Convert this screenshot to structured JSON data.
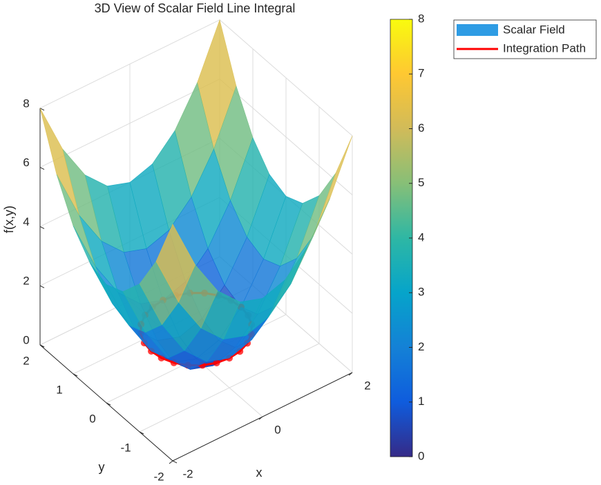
{
  "chart_data": {
    "type": "surface3d",
    "title": "3D View of Scalar Field Line Integral",
    "xlabel": "x",
    "ylabel": "y",
    "zlabel": "f(x,y)",
    "x": [
      -2,
      -1.5,
      -1,
      -0.5,
      0,
      0.5,
      1,
      1.5,
      2
    ],
    "y": [
      -2,
      -1.5,
      -1,
      -0.5,
      0,
      0.5,
      1,
      1.5,
      2
    ],
    "z": [
      [
        8,
        6.25,
        5,
        4.25,
        4,
        4.25,
        5,
        6.25,
        8
      ],
      [
        6.25,
        4.5,
        3.25,
        2.5,
        2.25,
        2.5,
        3.25,
        4.5,
        6.25
      ],
      [
        5,
        3.25,
        2,
        1.25,
        1,
        1.25,
        2,
        3.25,
        5
      ],
      [
        4.25,
        2.5,
        1.25,
        0.5,
        0.25,
        0.5,
        1.25,
        2.5,
        4.25
      ],
      [
        4,
        2.25,
        1,
        0.25,
        0,
        0.25,
        1,
        2.25,
        4
      ],
      [
        4.25,
        2.5,
        1.25,
        0.5,
        0.25,
        0.5,
        1.25,
        2.5,
        4.25
      ],
      [
        5,
        3.25,
        2,
        1.25,
        1,
        1.25,
        2,
        3.25,
        5
      ],
      [
        6.25,
        4.5,
        3.25,
        2.5,
        2.25,
        2.5,
        3.25,
        4.5,
        6.25
      ],
      [
        8,
        6.25,
        5,
        4.25,
        4,
        4.25,
        5,
        6.25,
        8
      ]
    ],
    "surface_name": "Scalar Field",
    "surface_legend_color": "#2e9ce4",
    "colormap": "parula",
    "path": {
      "name": "Integration Path",
      "color": "#ff0000",
      "x": [
        1,
        0.966,
        0.866,
        0.707,
        0.5,
        0.259,
        0,
        -0.259,
        -0.5,
        -0.707,
        -0.866,
        -0.966,
        -1,
        -0.966,
        -0.866,
        -0.707,
        -0.5,
        -0.259,
        0,
        0.259,
        0.5,
        0.707,
        0.866,
        0.966,
        1
      ],
      "y": [
        0,
        0.259,
        0.5,
        0.707,
        0.866,
        0.966,
        1,
        0.966,
        0.866,
        0.707,
        0.5,
        0.259,
        0,
        -0.259,
        -0.5,
        -0.707,
        -0.866,
        -0.966,
        -1,
        -0.966,
        -0.866,
        -0.707,
        -0.5,
        -0.259,
        0
      ],
      "z": [
        1,
        1,
        1,
        1,
        1,
        1,
        1,
        1,
        1,
        1,
        1,
        1,
        1,
        1,
        1,
        1,
        1,
        1,
        1,
        1,
        1,
        1,
        1,
        1,
        1
      ]
    },
    "xlim": [
      -2,
      2
    ],
    "ylim": [
      -2,
      2
    ],
    "zlim": [
      0,
      8
    ],
    "xticks": [
      -2,
      0,
      2
    ],
    "yticks": [
      -2,
      -1,
      0,
      1,
      2
    ],
    "zticks": [
      0,
      2,
      4,
      6,
      8
    ],
    "clim": [
      0,
      8
    ],
    "cticks": [
      0,
      1,
      2,
      3,
      4,
      5,
      6,
      7,
      8
    ],
    "grid": true
  }
}
